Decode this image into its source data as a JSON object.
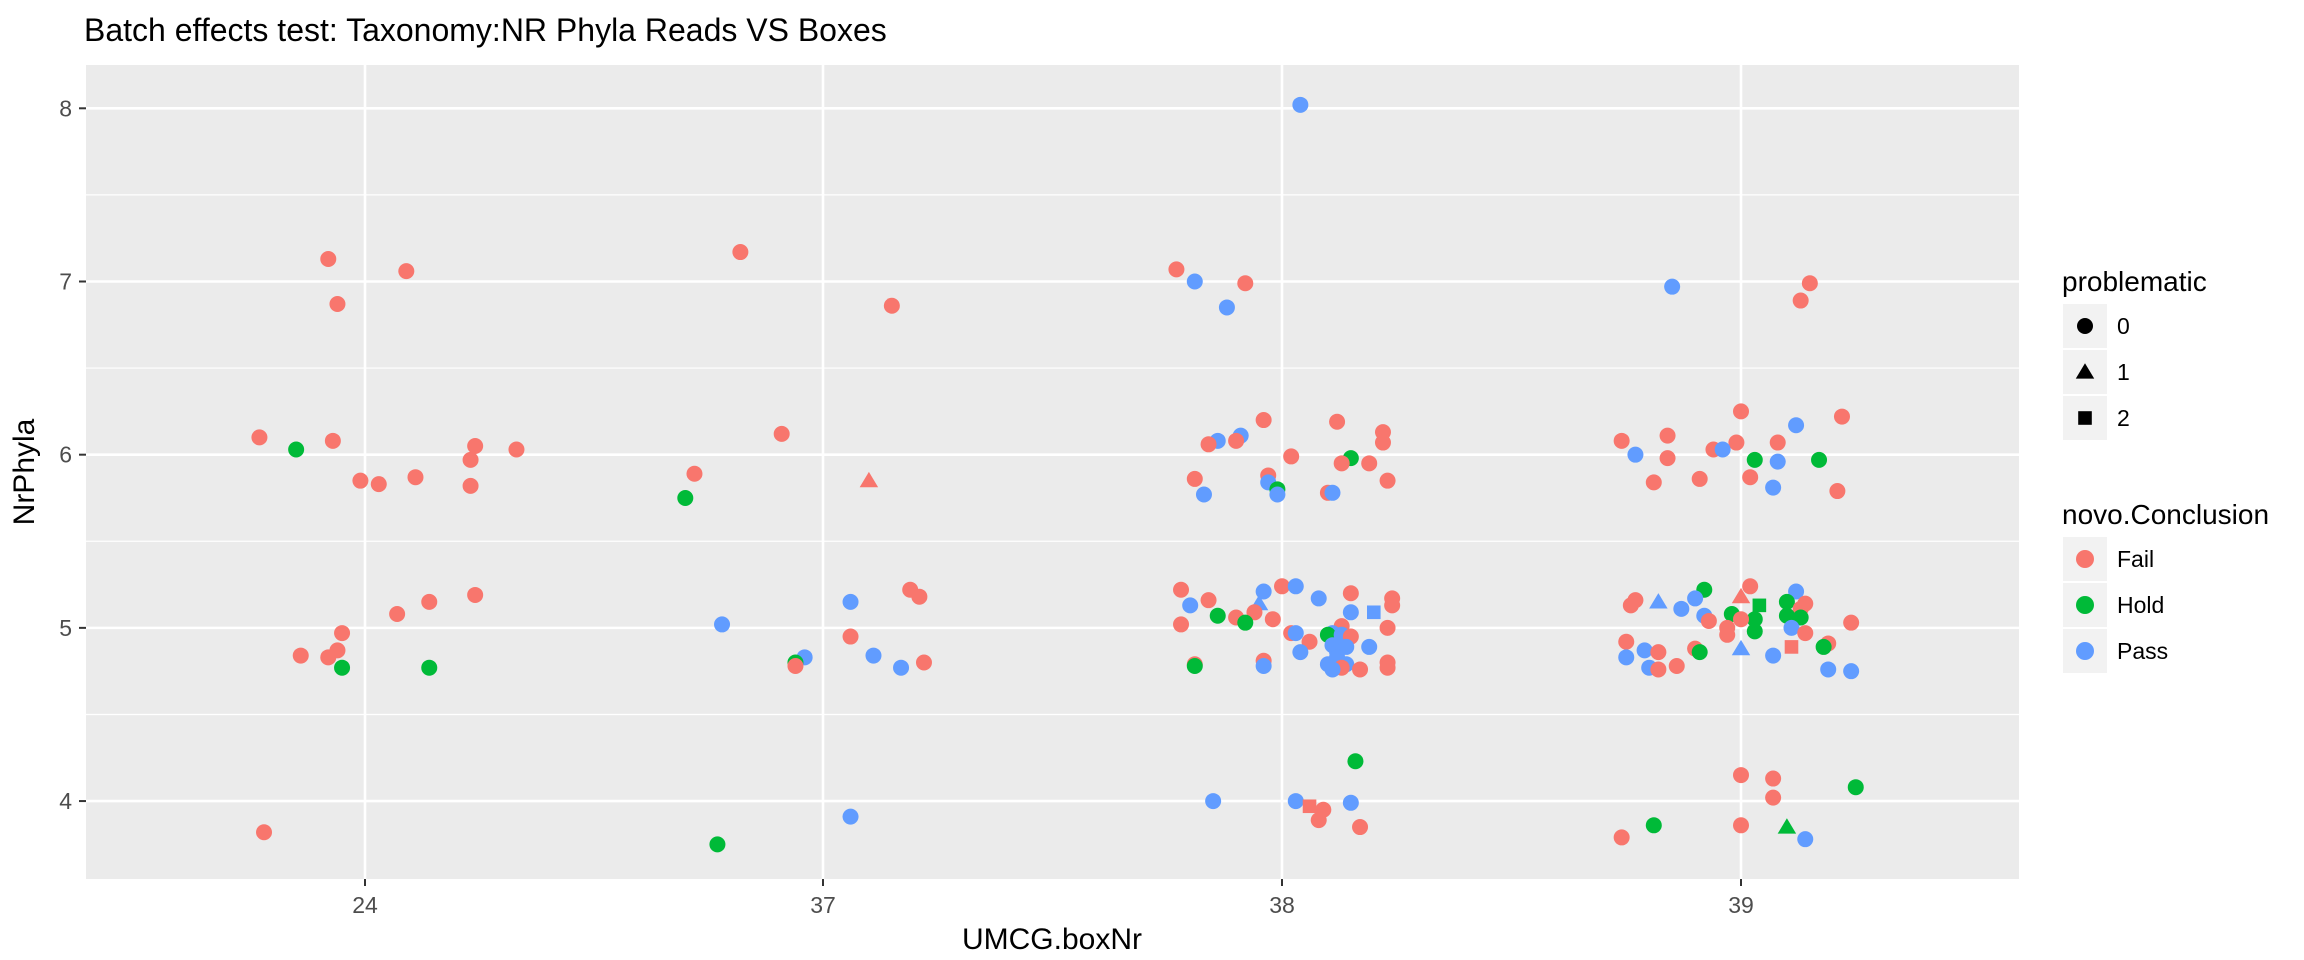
{
  "chart_data": {
    "type": "scatter",
    "title": "Batch effects test: Taxonomy:NR Phyla Reads VS Boxes",
    "xlabel": "UMCG.boxNr",
    "ylabel": "NrPhyla",
    "x_categories": [
      "24",
      "37",
      "38",
      "39"
    ],
    "ylim": [
      3.55,
      8.25
    ],
    "y_ticks": [
      4,
      5,
      6,
      7,
      8
    ],
    "grid": true,
    "legend_placement": "right",
    "legends": {
      "shape": {
        "title": "problematic",
        "entries": [
          {
            "label": "0",
            "shape": "circle"
          },
          {
            "label": "1",
            "shape": "triangle"
          },
          {
            "label": "2",
            "shape": "square"
          }
        ]
      },
      "color": {
        "title": "novo.Conclusion",
        "entries": [
          {
            "label": "Fail",
            "color": "#F8766D"
          },
          {
            "label": "Hold",
            "color": "#00BA38"
          },
          {
            "label": "Pass",
            "color": "#619CFF"
          }
        ]
      }
    },
    "points": [
      {
        "x": 23.77,
        "y": 6.1,
        "c": "Fail",
        "s": 0
      },
      {
        "x": 23.92,
        "y": 7.13,
        "c": "Fail",
        "s": 0
      },
      {
        "x": 23.94,
        "y": 6.87,
        "c": "Fail",
        "s": 0
      },
      {
        "x": 23.93,
        "y": 6.08,
        "c": "Fail",
        "s": 0
      },
      {
        "x": 23.85,
        "y": 6.03,
        "c": "Hold",
        "s": 0
      },
      {
        "x": 23.99,
        "y": 5.85,
        "c": "Fail",
        "s": 0
      },
      {
        "x": 24.03,
        "y": 5.83,
        "c": "Fail",
        "s": 0
      },
      {
        "x": 24.09,
        "y": 7.06,
        "c": "Fail",
        "s": 0
      },
      {
        "x": 24.11,
        "y": 5.87,
        "c": "Fail",
        "s": 0
      },
      {
        "x": 24.24,
        "y": 6.05,
        "c": "Fail",
        "s": 0
      },
      {
        "x": 24.23,
        "y": 5.97,
        "c": "Fail",
        "s": 0
      },
      {
        "x": 24.23,
        "y": 5.82,
        "c": "Fail",
        "s": 0
      },
      {
        "x": 24.33,
        "y": 6.03,
        "c": "Fail",
        "s": 0
      },
      {
        "x": 23.95,
        "y": 4.97,
        "c": "Fail",
        "s": 0
      },
      {
        "x": 23.86,
        "y": 4.84,
        "c": "Fail",
        "s": 0
      },
      {
        "x": 23.92,
        "y": 4.83,
        "c": "Fail",
        "s": 0
      },
      {
        "x": 23.94,
        "y": 4.87,
        "c": "Fail",
        "s": 0
      },
      {
        "x": 23.95,
        "y": 4.77,
        "c": "Hold",
        "s": 0
      },
      {
        "x": 24.07,
        "y": 5.08,
        "c": "Fail",
        "s": 0
      },
      {
        "x": 24.14,
        "y": 5.15,
        "c": "Fail",
        "s": 0
      },
      {
        "x": 24.24,
        "y": 5.19,
        "c": "Fail",
        "s": 0
      },
      {
        "x": 24.14,
        "y": 4.77,
        "c": "Hold",
        "s": 0
      },
      {
        "x": 23.78,
        "y": 3.82,
        "c": "Fail",
        "s": 0
      },
      {
        "x": 36.82,
        "y": 7.17,
        "c": "Fail",
        "s": 0
      },
      {
        "x": 37.15,
        "y": 6.86,
        "c": "Fail",
        "s": 0
      },
      {
        "x": 36.91,
        "y": 6.12,
        "c": "Fail",
        "s": 0
      },
      {
        "x": 36.72,
        "y": 5.89,
        "c": "Fail",
        "s": 0
      },
      {
        "x": 37.1,
        "y": 5.85,
        "c": "Fail",
        "s": 1
      },
      {
        "x": 36.7,
        "y": 5.75,
        "c": "Hold",
        "s": 0
      },
      {
        "x": 36.78,
        "y": 5.02,
        "c": "Pass",
        "s": 0
      },
      {
        "x": 37.19,
        "y": 5.22,
        "c": "Fail",
        "s": 0
      },
      {
        "x": 37.21,
        "y": 5.18,
        "c": "Fail",
        "s": 0
      },
      {
        "x": 37.06,
        "y": 5.15,
        "c": "Pass",
        "s": 0
      },
      {
        "x": 37.06,
        "y": 4.95,
        "c": "Fail",
        "s": 0
      },
      {
        "x": 37.11,
        "y": 4.84,
        "c": "Pass",
        "s": 0
      },
      {
        "x": 36.96,
        "y": 4.83,
        "c": "Pass",
        "s": 0
      },
      {
        "x": 36.94,
        "y": 4.8,
        "c": "Hold",
        "s": 0
      },
      {
        "x": 36.94,
        "y": 4.78,
        "c": "Fail",
        "s": 0
      },
      {
        "x": 37.17,
        "y": 4.77,
        "c": "Pass",
        "s": 0
      },
      {
        "x": 37.22,
        "y": 4.8,
        "c": "Fail",
        "s": 0
      },
      {
        "x": 37.06,
        "y": 3.91,
        "c": "Pass",
        "s": 0
      },
      {
        "x": 36.77,
        "y": 3.75,
        "c": "Hold",
        "s": 0
      },
      {
        "x": 38.04,
        "y": 8.02,
        "c": "Pass",
        "s": 0
      },
      {
        "x": 37.77,
        "y": 7.07,
        "c": "Fail",
        "s": 0
      },
      {
        "x": 37.81,
        "y": 7.0,
        "c": "Pass",
        "s": 0
      },
      {
        "x": 37.92,
        "y": 6.99,
        "c": "Fail",
        "s": 0
      },
      {
        "x": 37.88,
        "y": 6.85,
        "c": "Pass",
        "s": 0
      },
      {
        "x": 37.96,
        "y": 6.2,
        "c": "Fail",
        "s": 0
      },
      {
        "x": 38.12,
        "y": 6.19,
        "c": "Fail",
        "s": 0
      },
      {
        "x": 38.22,
        "y": 6.13,
        "c": "Fail",
        "s": 0
      },
      {
        "x": 37.91,
        "y": 6.11,
        "c": "Pass",
        "s": 0
      },
      {
        "x": 37.86,
        "y": 6.08,
        "c": "Pass",
        "s": 0
      },
      {
        "x": 37.84,
        "y": 6.06,
        "c": "Fail",
        "s": 0
      },
      {
        "x": 37.9,
        "y": 6.08,
        "c": "Fail",
        "s": 0
      },
      {
        "x": 38.22,
        "y": 6.07,
        "c": "Fail",
        "s": 0
      },
      {
        "x": 38.02,
        "y": 5.99,
        "c": "Fail",
        "s": 0
      },
      {
        "x": 38.15,
        "y": 5.98,
        "c": "Hold",
        "s": 0
      },
      {
        "x": 38.13,
        "y": 5.95,
        "c": "Fail",
        "s": 0
      },
      {
        "x": 38.19,
        "y": 5.95,
        "c": "Fail",
        "s": 0
      },
      {
        "x": 37.97,
        "y": 5.88,
        "c": "Fail",
        "s": 0
      },
      {
        "x": 37.81,
        "y": 5.86,
        "c": "Fail",
        "s": 0
      },
      {
        "x": 38.23,
        "y": 5.85,
        "c": "Fail",
        "s": 0
      },
      {
        "x": 37.97,
        "y": 5.84,
        "c": "Pass",
        "s": 0
      },
      {
        "x": 37.99,
        "y": 5.8,
        "c": "Hold",
        "s": 0
      },
      {
        "x": 38.1,
        "y": 5.78,
        "c": "Fail",
        "s": 0
      },
      {
        "x": 38.11,
        "y": 5.78,
        "c": "Pass",
        "s": 0
      },
      {
        "x": 37.83,
        "y": 5.77,
        "c": "Pass",
        "s": 0
      },
      {
        "x": 37.99,
        "y": 5.77,
        "c": "Pass",
        "s": 0
      },
      {
        "x": 37.78,
        "y": 5.22,
        "c": "Fail",
        "s": 0
      },
      {
        "x": 37.96,
        "y": 5.21,
        "c": "Pass",
        "s": 0
      },
      {
        "x": 38.0,
        "y": 5.24,
        "c": "Fail",
        "s": 0
      },
      {
        "x": 38.03,
        "y": 5.24,
        "c": "Pass",
        "s": 0
      },
      {
        "x": 38.15,
        "y": 5.2,
        "c": "Fail",
        "s": 0
      },
      {
        "x": 38.24,
        "y": 5.17,
        "c": "Fail",
        "s": 0
      },
      {
        "x": 38.08,
        "y": 5.17,
        "c": "Pass",
        "s": 0
      },
      {
        "x": 37.84,
        "y": 5.16,
        "c": "Fail",
        "s": 0
      },
      {
        "x": 37.8,
        "y": 5.13,
        "c": "Pass",
        "s": 0
      },
      {
        "x": 37.95,
        "y": 5.14,
        "c": "Pass",
        "s": 1
      },
      {
        "x": 38.24,
        "y": 5.13,
        "c": "Fail",
        "s": 0
      },
      {
        "x": 38.15,
        "y": 5.09,
        "c": "Pass",
        "s": 0
      },
      {
        "x": 38.2,
        "y": 5.09,
        "c": "Pass",
        "s": 2
      },
      {
        "x": 37.94,
        "y": 5.09,
        "c": "Fail",
        "s": 0
      },
      {
        "x": 37.86,
        "y": 5.07,
        "c": "Hold",
        "s": 0
      },
      {
        "x": 37.9,
        "y": 5.06,
        "c": "Fail",
        "s": 0
      },
      {
        "x": 37.98,
        "y": 5.05,
        "c": "Fail",
        "s": 0
      },
      {
        "x": 37.92,
        "y": 5.03,
        "c": "Hold",
        "s": 0
      },
      {
        "x": 37.78,
        "y": 5.02,
        "c": "Fail",
        "s": 0
      },
      {
        "x": 38.13,
        "y": 5.01,
        "c": "Fail",
        "s": 0
      },
      {
        "x": 38.23,
        "y": 5.0,
        "c": "Fail",
        "s": 0
      },
      {
        "x": 38.02,
        "y": 4.97,
        "c": "Fail",
        "s": 0
      },
      {
        "x": 38.03,
        "y": 4.97,
        "c": "Pass",
        "s": 0
      },
      {
        "x": 38.11,
        "y": 4.97,
        "c": "Pass",
        "s": 0
      },
      {
        "x": 38.1,
        "y": 4.96,
        "c": "Hold",
        "s": 0
      },
      {
        "x": 38.13,
        "y": 4.96,
        "c": "Pass",
        "s": 0
      },
      {
        "x": 38.15,
        "y": 4.95,
        "c": "Fail",
        "s": 0
      },
      {
        "x": 38.06,
        "y": 4.92,
        "c": "Fail",
        "s": 0
      },
      {
        "x": 38.11,
        "y": 4.9,
        "c": "Pass",
        "s": 0
      },
      {
        "x": 38.14,
        "y": 4.89,
        "c": "Pass",
        "s": 0
      },
      {
        "x": 38.19,
        "y": 4.89,
        "c": "Pass",
        "s": 0
      },
      {
        "x": 38.04,
        "y": 4.86,
        "c": "Pass",
        "s": 0
      },
      {
        "x": 38.12,
        "y": 4.86,
        "c": "Pass",
        "s": 0
      },
      {
        "x": 38.12,
        "y": 4.83,
        "c": "Pass",
        "s": 0
      },
      {
        "x": 37.96,
        "y": 4.81,
        "c": "Fail",
        "s": 0
      },
      {
        "x": 38.23,
        "y": 4.8,
        "c": "Fail",
        "s": 0
      },
      {
        "x": 38.1,
        "y": 4.79,
        "c": "Pass",
        "s": 0
      },
      {
        "x": 38.14,
        "y": 4.79,
        "c": "Pass",
        "s": 0
      },
      {
        "x": 37.81,
        "y": 4.79,
        "c": "Fail",
        "s": 0
      },
      {
        "x": 37.81,
        "y": 4.78,
        "c": "Hold",
        "s": 0
      },
      {
        "x": 37.96,
        "y": 4.78,
        "c": "Pass",
        "s": 0
      },
      {
        "x": 38.13,
        "y": 4.77,
        "c": "Fail",
        "s": 0
      },
      {
        "x": 38.23,
        "y": 4.77,
        "c": "Fail",
        "s": 0
      },
      {
        "x": 38.17,
        "y": 4.76,
        "c": "Fail",
        "s": 0
      },
      {
        "x": 38.11,
        "y": 4.76,
        "c": "Pass",
        "s": 0
      },
      {
        "x": 38.16,
        "y": 4.23,
        "c": "Hold",
        "s": 0
      },
      {
        "x": 37.85,
        "y": 4.0,
        "c": "Pass",
        "s": 0
      },
      {
        "x": 38.03,
        "y": 4.0,
        "c": "Pass",
        "s": 0
      },
      {
        "x": 38.15,
        "y": 3.99,
        "c": "Pass",
        "s": 0
      },
      {
        "x": 38.06,
        "y": 3.97,
        "c": "Fail",
        "s": 2
      },
      {
        "x": 38.09,
        "y": 3.95,
        "c": "Fail",
        "s": 0
      },
      {
        "x": 38.08,
        "y": 3.89,
        "c": "Fail",
        "s": 0
      },
      {
        "x": 38.17,
        "y": 3.85,
        "c": "Fail",
        "s": 0
      },
      {
        "x": 38.85,
        "y": 6.97,
        "c": "Pass",
        "s": 0
      },
      {
        "x": 39.15,
        "y": 6.99,
        "c": "Fail",
        "s": 0
      },
      {
        "x": 39.13,
        "y": 6.89,
        "c": "Fail",
        "s": 0
      },
      {
        "x": 39.0,
        "y": 6.25,
        "c": "Fail",
        "s": 0
      },
      {
        "x": 39.22,
        "y": 6.22,
        "c": "Fail",
        "s": 0
      },
      {
        "x": 39.12,
        "y": 6.17,
        "c": "Pass",
        "s": 0
      },
      {
        "x": 38.84,
        "y": 6.11,
        "c": "Fail",
        "s": 0
      },
      {
        "x": 38.74,
        "y": 6.08,
        "c": "Fail",
        "s": 0
      },
      {
        "x": 38.99,
        "y": 6.07,
        "c": "Fail",
        "s": 0
      },
      {
        "x": 39.08,
        "y": 6.07,
        "c": "Fail",
        "s": 0
      },
      {
        "x": 38.94,
        "y": 6.03,
        "c": "Fail",
        "s": 0
      },
      {
        "x": 38.96,
        "y": 6.03,
        "c": "Pass",
        "s": 0
      },
      {
        "x": 38.77,
        "y": 6.0,
        "c": "Pass",
        "s": 0
      },
      {
        "x": 38.84,
        "y": 5.98,
        "c": "Fail",
        "s": 0
      },
      {
        "x": 39.03,
        "y": 5.97,
        "c": "Hold",
        "s": 0
      },
      {
        "x": 39.17,
        "y": 5.97,
        "c": "Hold",
        "s": 0
      },
      {
        "x": 39.08,
        "y": 5.96,
        "c": "Pass",
        "s": 0
      },
      {
        "x": 39.02,
        "y": 5.87,
        "c": "Fail",
        "s": 0
      },
      {
        "x": 38.91,
        "y": 5.86,
        "c": "Fail",
        "s": 0
      },
      {
        "x": 38.81,
        "y": 5.84,
        "c": "Fail",
        "s": 0
      },
      {
        "x": 39.07,
        "y": 5.81,
        "c": "Pass",
        "s": 0
      },
      {
        "x": 39.21,
        "y": 5.79,
        "c": "Fail",
        "s": 0
      },
      {
        "x": 39.02,
        "y": 5.24,
        "c": "Fail",
        "s": 0
      },
      {
        "x": 38.92,
        "y": 5.22,
        "c": "Hold",
        "s": 0
      },
      {
        "x": 39.12,
        "y": 5.21,
        "c": "Pass",
        "s": 0
      },
      {
        "x": 39.0,
        "y": 5.18,
        "c": "Fail",
        "s": 1
      },
      {
        "x": 38.9,
        "y": 5.17,
        "c": "Pass",
        "s": 0
      },
      {
        "x": 38.77,
        "y": 5.16,
        "c": "Fail",
        "s": 0
      },
      {
        "x": 38.82,
        "y": 5.15,
        "c": "Pass",
        "s": 1
      },
      {
        "x": 39.1,
        "y": 5.15,
        "c": "Hold",
        "s": 0
      },
      {
        "x": 39.14,
        "y": 5.14,
        "c": "Fail",
        "s": 0
      },
      {
        "x": 38.76,
        "y": 5.13,
        "c": "Fail",
        "s": 0
      },
      {
        "x": 39.04,
        "y": 5.13,
        "c": "Hold",
        "s": 2
      },
      {
        "x": 38.87,
        "y": 5.11,
        "c": "Pass",
        "s": 0
      },
      {
        "x": 39.13,
        "y": 5.11,
        "c": "Fail",
        "s": 0
      },
      {
        "x": 38.98,
        "y": 5.08,
        "c": "Hold",
        "s": 0
      },
      {
        "x": 39.1,
        "y": 5.07,
        "c": "Hold",
        "s": 0
      },
      {
        "x": 38.92,
        "y": 5.07,
        "c": "Pass",
        "s": 0
      },
      {
        "x": 39.13,
        "y": 5.06,
        "c": "Hold",
        "s": 0
      },
      {
        "x": 39.03,
        "y": 5.05,
        "c": "Hold",
        "s": 0
      },
      {
        "x": 39.0,
        "y": 5.05,
        "c": "Fail",
        "s": 0
      },
      {
        "x": 38.93,
        "y": 5.04,
        "c": "Fail",
        "s": 0
      },
      {
        "x": 39.24,
        "y": 5.03,
        "c": "Fail",
        "s": 0
      },
      {
        "x": 39.11,
        "y": 5.0,
        "c": "Pass",
        "s": 0
      },
      {
        "x": 38.97,
        "y": 5.0,
        "c": "Fail",
        "s": 0
      },
      {
        "x": 39.03,
        "y": 4.98,
        "c": "Hold",
        "s": 0
      },
      {
        "x": 39.14,
        "y": 4.97,
        "c": "Fail",
        "s": 0
      },
      {
        "x": 38.97,
        "y": 4.96,
        "c": "Fail",
        "s": 0
      },
      {
        "x": 38.75,
        "y": 4.92,
        "c": "Fail",
        "s": 0
      },
      {
        "x": 39.19,
        "y": 4.91,
        "c": "Fail",
        "s": 0
      },
      {
        "x": 39.18,
        "y": 4.89,
        "c": "Hold",
        "s": 0
      },
      {
        "x": 39.11,
        "y": 4.89,
        "c": "Fail",
        "s": 2
      },
      {
        "x": 39.0,
        "y": 4.88,
        "c": "Pass",
        "s": 1
      },
      {
        "x": 38.9,
        "y": 4.88,
        "c": "Fail",
        "s": 0
      },
      {
        "x": 38.91,
        "y": 4.86,
        "c": "Hold",
        "s": 0
      },
      {
        "x": 38.79,
        "y": 4.87,
        "c": "Pass",
        "s": 0
      },
      {
        "x": 38.82,
        "y": 4.86,
        "c": "Fail",
        "s": 0
      },
      {
        "x": 39.07,
        "y": 4.84,
        "c": "Pass",
        "s": 0
      },
      {
        "x": 38.75,
        "y": 4.83,
        "c": "Pass",
        "s": 0
      },
      {
        "x": 38.86,
        "y": 4.78,
        "c": "Fail",
        "s": 0
      },
      {
        "x": 38.8,
        "y": 4.77,
        "c": "Pass",
        "s": 0
      },
      {
        "x": 38.82,
        "y": 4.76,
        "c": "Fail",
        "s": 0
      },
      {
        "x": 39.19,
        "y": 4.76,
        "c": "Pass",
        "s": 0
      },
      {
        "x": 39.24,
        "y": 4.75,
        "c": "Pass",
        "s": 0
      },
      {
        "x": 39.0,
        "y": 4.15,
        "c": "Fail",
        "s": 0
      },
      {
        "x": 39.07,
        "y": 4.13,
        "c": "Fail",
        "s": 0
      },
      {
        "x": 39.25,
        "y": 4.08,
        "c": "Hold",
        "s": 0
      },
      {
        "x": 39.07,
        "y": 4.02,
        "c": "Fail",
        "s": 0
      },
      {
        "x": 39.0,
        "y": 3.86,
        "c": "Fail",
        "s": 0
      },
      {
        "x": 38.81,
        "y": 3.86,
        "c": "Hold",
        "s": 0
      },
      {
        "x": 39.1,
        "y": 3.85,
        "c": "Hold",
        "s": 1
      },
      {
        "x": 39.14,
        "y": 3.78,
        "c": "Pass",
        "s": 0
      },
      {
        "x": 38.74,
        "y": 3.79,
        "c": "Fail",
        "s": 0
      }
    ]
  }
}
